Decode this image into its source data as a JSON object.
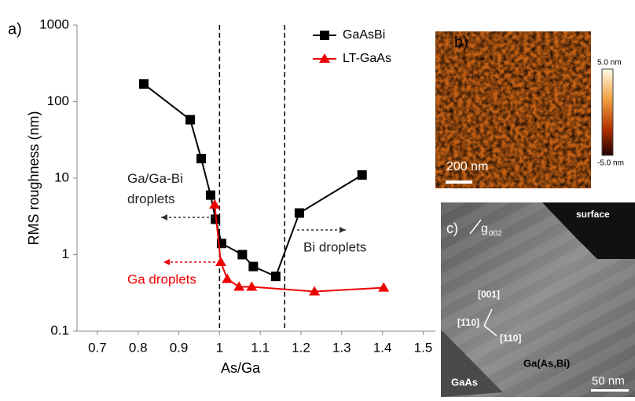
{
  "chart_data": {
    "type": "line",
    "panel_label": "a)",
    "x_label": "As/Ga",
    "y_label": "RMS roughness (nm)",
    "xlim": [
      0.65,
      1.53
    ],
    "xticks": [
      0.7,
      0.8,
      0.9,
      1,
      1.1,
      1.2,
      1.3,
      1.4,
      1.5
    ],
    "ylim": [
      0.1,
      1000
    ],
    "yticks": [
      0.1,
      1,
      10,
      100,
      1000
    ],
    "y_log": true,
    "legend": "upper right",
    "reference_lines": [
      1.0,
      1.16
    ],
    "series": [
      {
        "name": "GaAsBi",
        "color": "#000000",
        "marker": "square",
        "x": [
          0.814,
          0.928,
          0.955,
          0.978,
          0.99,
          1.005,
          1.056,
          1.083,
          1.138,
          1.196,
          1.35
        ],
        "values": [
          170,
          58,
          18,
          6,
          2.9,
          1.4,
          1.0,
          0.7,
          0.52,
          3.5,
          11
        ]
      },
      {
        "name": "LT-GaAs",
        "color": "#ee0000",
        "marker": "triangle",
        "x": [
          0.988,
          1.003,
          1.019,
          1.048,
          1.079,
          1.233,
          1.403
        ],
        "values": [
          4.5,
          0.8,
          0.48,
          0.38,
          0.38,
          0.33,
          0.37
        ]
      }
    ],
    "annotations": [
      "Ga/Ga-Bi droplets",
      "Bi droplets",
      "Ga droplets"
    ]
  },
  "panels": {
    "b": {
      "label": "b)",
      "scale_bar": "200 nm",
      "colorbar_max": "5.0 nm",
      "colorbar_min": "-5.0 nm"
    },
    "c": {
      "label": "c)",
      "g": "g",
      "g_sub": "002",
      "surface": "surface",
      "dir_001": "[001]",
      "dir_m110": "[1̄10]",
      "dir_110": "[110]",
      "layer": "Ga(As,Bi)",
      "substrate": "GaAs",
      "scale_bar": "50 nm"
    }
  }
}
